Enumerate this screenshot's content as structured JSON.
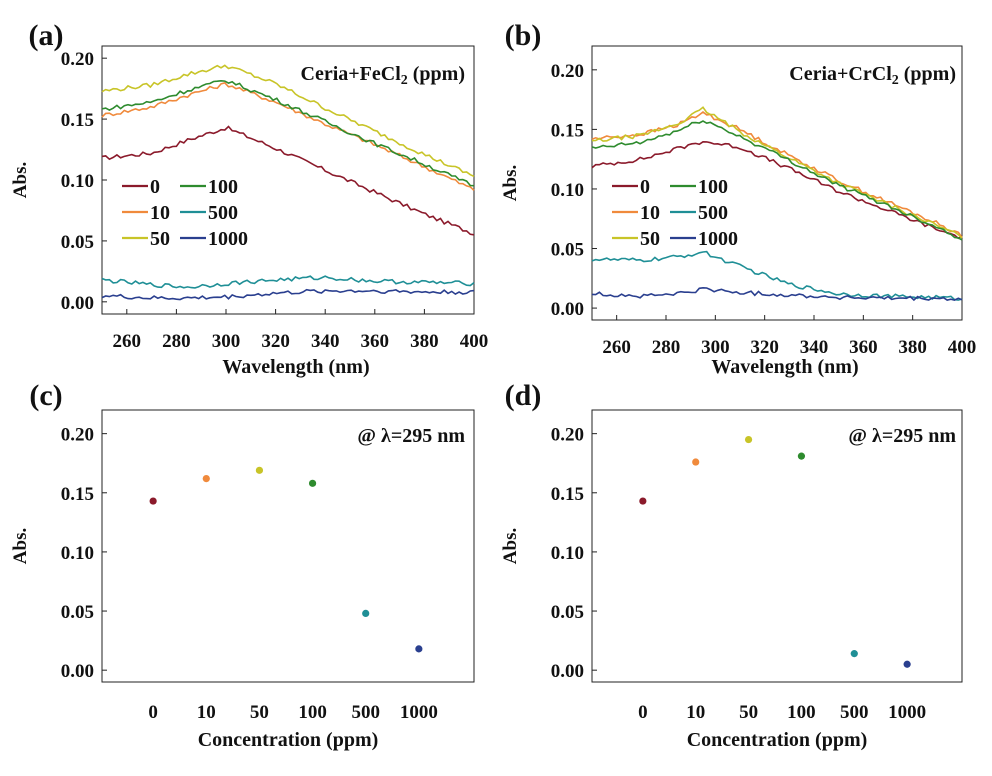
{
  "figure": {
    "panels": [
      {
        "letter": "(a)",
        "title_pre": "Ceria+FeCl",
        "title_sub": "2",
        "title_post": " (ppm)"
      },
      {
        "letter": "(b)",
        "title_pre": "Ceria+CrCl",
        "title_sub": "2",
        "title_post": " (ppm)"
      },
      {
        "letter": "(c)",
        "annot": "@ λ=295 nm"
      },
      {
        "letter": "(d)",
        "annot": "@ λ=295 nm"
      }
    ]
  },
  "colors": {
    "0": "#8b1a2b",
    "10": "#f08a3c",
    "50": "#c8c428",
    "100": "#2e8b2e",
    "500": "#1f8f96",
    "1000": "#2a3f8f"
  },
  "chart_data": [
    {
      "type": "line",
      "panel": "a",
      "xlabel": "Wavelength (nm)",
      "ylabel": "Abs.",
      "xlim": [
        250,
        400
      ],
      "ylim": [
        -0.01,
        0.21
      ],
      "xticks": [
        "260",
        "280",
        "300",
        "320",
        "340",
        "360",
        "380",
        "400"
      ],
      "yticks": [
        "0.00",
        "0.05",
        "0.10",
        "0.15",
        "0.20"
      ],
      "legend": [
        "0",
        "10",
        "50",
        "100",
        "500",
        "1000"
      ],
      "x": [
        250,
        270,
        285,
        300,
        320,
        340,
        360,
        380,
        400
      ],
      "series": [
        {
          "name": "0",
          "values": [
            0.118,
            0.122,
            0.133,
            0.143,
            0.126,
            0.108,
            0.09,
            0.072,
            0.056
          ]
        },
        {
          "name": "10",
          "values": [
            0.153,
            0.16,
            0.17,
            0.179,
            0.164,
            0.146,
            0.129,
            0.111,
            0.092
          ]
        },
        {
          "name": "50",
          "values": [
            0.173,
            0.178,
            0.187,
            0.194,
            0.179,
            0.159,
            0.14,
            0.121,
            0.103
          ]
        },
        {
          "name": "100",
          "values": [
            0.158,
            0.164,
            0.174,
            0.182,
            0.166,
            0.148,
            0.13,
            0.113,
            0.095
          ]
        },
        {
          "name": "500",
          "values": [
            0.018,
            0.014,
            0.012,
            0.015,
            0.018,
            0.02,
            0.017,
            0.016,
            0.015
          ]
        },
        {
          "name": "1000",
          "values": [
            0.005,
            0.003,
            0.003,
            0.004,
            0.007,
            0.009,
            0.009,
            0.008,
            0.008
          ]
        }
      ]
    },
    {
      "type": "line",
      "panel": "b",
      "xlabel": "Wavelength (nm)",
      "ylabel": "Abs.",
      "xlim": [
        250,
        400
      ],
      "ylim": [
        -0.01,
        0.22
      ],
      "xticks": [
        "260",
        "280",
        "300",
        "320",
        "340",
        "360",
        "380",
        "400"
      ],
      "yticks": [
        "0.00",
        "0.05",
        "0.10",
        "0.15",
        "0.20"
      ],
      "legend": [
        "0",
        "10",
        "50",
        "100",
        "500",
        "1000"
      ],
      "x": [
        250,
        270,
        285,
        295,
        310,
        330,
        350,
        370,
        390,
        400
      ],
      "series": [
        {
          "name": "0",
          "values": [
            0.119,
            0.125,
            0.134,
            0.14,
            0.135,
            0.117,
            0.098,
            0.082,
            0.066,
            0.059
          ]
        },
        {
          "name": "10",
          "values": [
            0.142,
            0.146,
            0.154,
            0.164,
            0.15,
            0.128,
            0.107,
            0.089,
            0.071,
            0.061
          ]
        },
        {
          "name": "50",
          "values": [
            0.14,
            0.145,
            0.155,
            0.167,
            0.148,
            0.126,
            0.105,
            0.087,
            0.069,
            0.06
          ]
        },
        {
          "name": "100",
          "values": [
            0.134,
            0.139,
            0.149,
            0.158,
            0.144,
            0.124,
            0.103,
            0.086,
            0.068,
            0.058
          ]
        },
        {
          "name": "500",
          "values": [
            0.041,
            0.04,
            0.043,
            0.047,
            0.035,
            0.02,
            0.012,
            0.01,
            0.009,
            0.008
          ]
        },
        {
          "name": "1000",
          "values": [
            0.012,
            0.01,
            0.012,
            0.016,
            0.013,
            0.011,
            0.009,
            0.008,
            0.008,
            0.007
          ]
        }
      ]
    },
    {
      "type": "scatter",
      "panel": "c",
      "xlabel": "Concentration (ppm)",
      "ylabel": "Abs.",
      "ylim": [
        -0.01,
        0.22
      ],
      "categories": [
        "0",
        "10",
        "50",
        "100",
        "500",
        "1000"
      ],
      "yticks": [
        "0.00",
        "0.05",
        "0.10",
        "0.15",
        "0.20"
      ],
      "values": [
        0.143,
        0.162,
        0.169,
        0.158,
        0.048,
        0.018
      ]
    },
    {
      "type": "scatter",
      "panel": "d",
      "xlabel": "Concentration (ppm)",
      "ylabel": "Abs.",
      "ylim": [
        -0.01,
        0.22
      ],
      "categories": [
        "0",
        "10",
        "50",
        "100",
        "500",
        "1000"
      ],
      "yticks": [
        "0.00",
        "0.05",
        "0.10",
        "0.15",
        "0.20"
      ],
      "values": [
        0.143,
        0.176,
        0.195,
        0.181,
        0.014,
        0.005
      ]
    }
  ]
}
